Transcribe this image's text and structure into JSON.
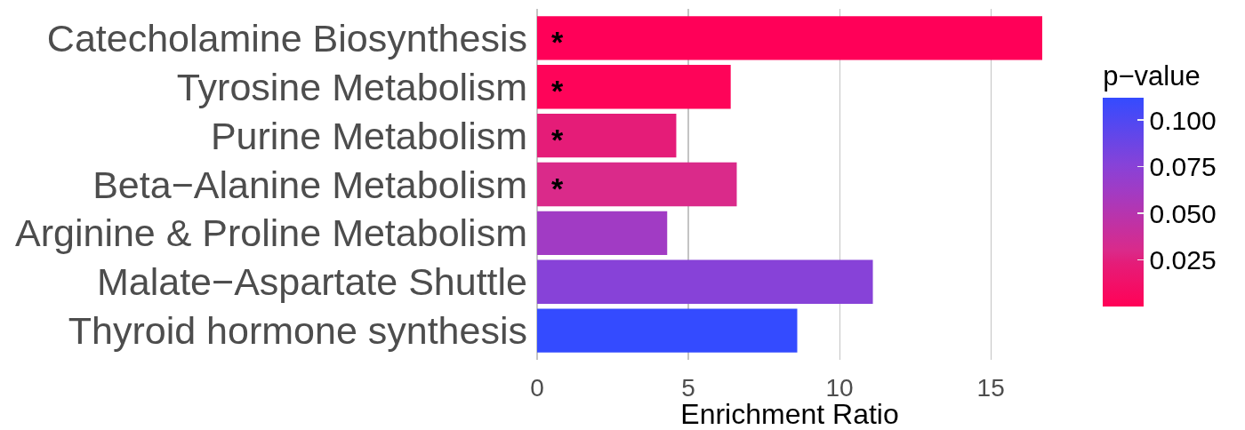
{
  "chart_data": {
    "type": "bar",
    "orientation": "horizontal",
    "categories": [
      "Catecholamine Biosynthesis",
      "Tyrosine Metabolism",
      "Purine Metabolism",
      "Beta−Alanine Metabolism",
      "Arginine & Proline Metabolism",
      "Malate−Aspartate Shuttle",
      "Thyroid hormone synthesis"
    ],
    "values": [
      16.7,
      6.4,
      4.6,
      6.6,
      4.3,
      11.1,
      8.6
    ],
    "colors": [
      "#ff0058",
      "#fe0459",
      "#e51c78",
      "#da2a8a",
      "#a13bc4",
      "#8742d8",
      "#344bff"
    ],
    "cvalues": [
      0.001,
      0.002,
      0.023,
      0.03,
      0.062,
      0.076,
      0.112
    ],
    "clim": [
      0,
      0.112
    ],
    "cticks": [
      0.025,
      {
        "value": 0.05,
        "label": "0.050"
      },
      0.075,
      {
        "value": 0.1,
        "label": "0.100"
      }
    ],
    "clabel": "p−value",
    "xlabel": "Enrichment Ratio",
    "xlim": [
      0,
      16.7
    ],
    "xticks": [
      0,
      5,
      10,
      15
    ],
    "grid": "x",
    "annotations": [
      {
        "text": "*",
        "y": "Catecholamine Biosynthesis"
      },
      {
        "text": "*",
        "y": "Tyrosine Metabolism"
      },
      {
        "text": "*",
        "y": "Purine Metabolism"
      },
      {
        "text": "*",
        "y": "Beta−Alanine Metabolism"
      }
    ]
  }
}
